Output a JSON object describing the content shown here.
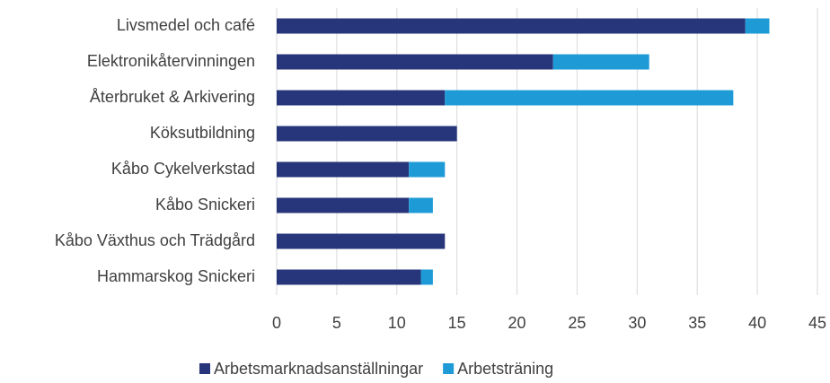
{
  "chart_data": {
    "type": "stacked_barh",
    "categories": [
      "Livsmedel och café",
      "Elektronikåtervinningen",
      "Återbruket & Arkivering",
      "Köksutbildning",
      "Kåbo Cykelverkstad",
      "Kåbo Snickeri",
      "Kåbo Växthus och Trädgård",
      "Hammarskog Snickeri"
    ],
    "series": [
      {
        "name": "Arbetsmarknadsanställningar",
        "color": "#27357b",
        "values": [
          39,
          23,
          14,
          15,
          11,
          11,
          14,
          12
        ]
      },
      {
        "name": "Arbetsträning",
        "color": "#1e9bd7",
        "values": [
          2,
          8,
          24,
          0,
          3,
          2,
          0,
          1
        ]
      }
    ],
    "xlim": [
      0,
      45
    ],
    "xticks": [
      0,
      5,
      10,
      15,
      20,
      25,
      30,
      35,
      40,
      45
    ],
    "grid": true,
    "legend": "bottom"
  }
}
